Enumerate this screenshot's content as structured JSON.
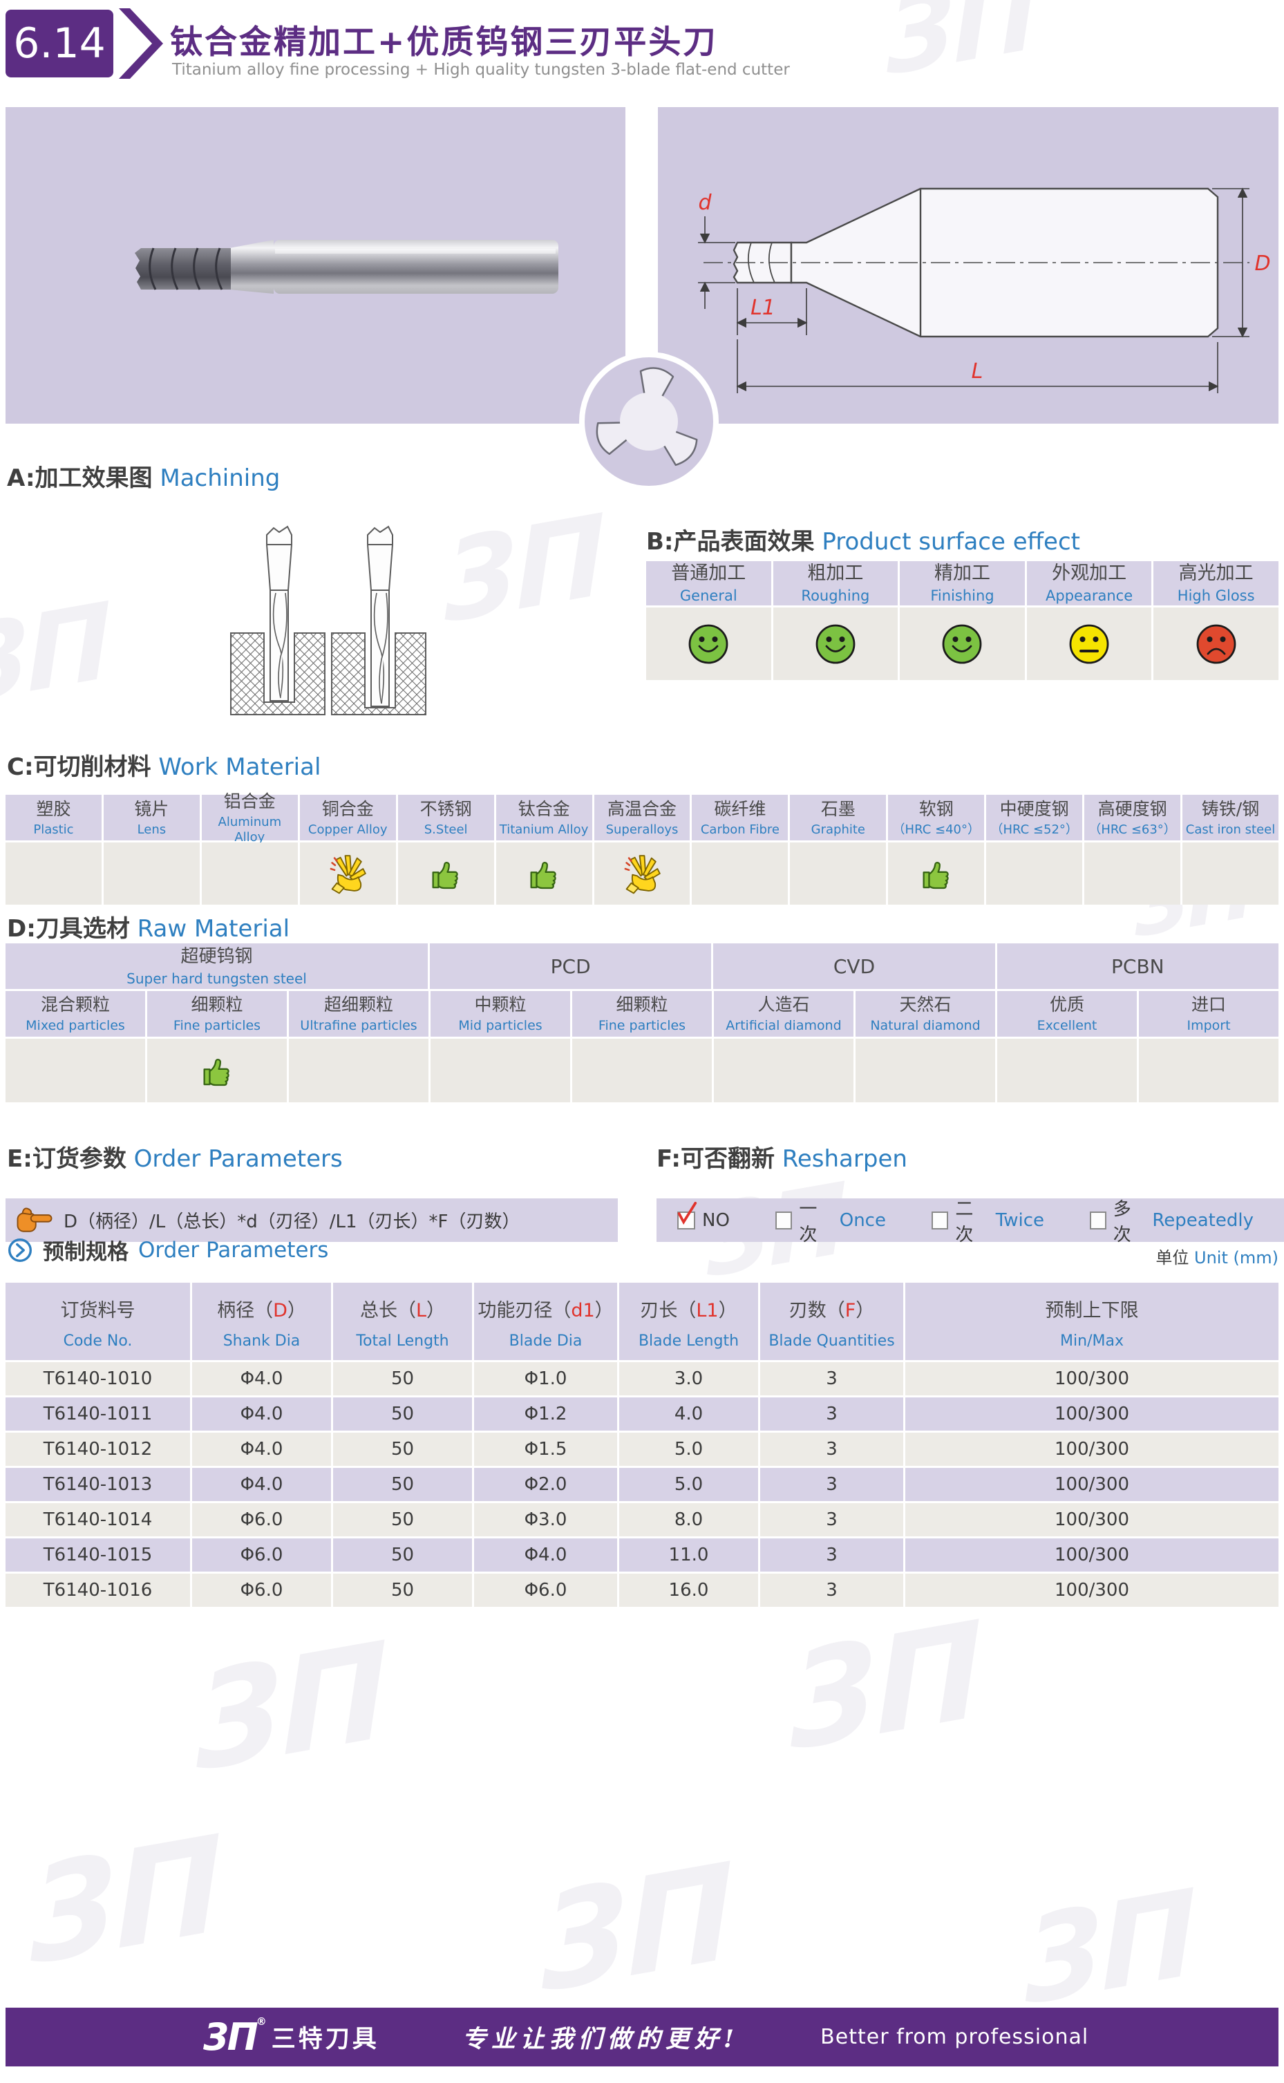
{
  "page": {
    "brand_purple": "#5c2d83",
    "accent_blue": "#2e7fc0",
    "lavender": "#cfc9e0",
    "table_header_color": "#d7d2e6",
    "table_body_color": "#ebe9e4",
    "status_red": "#e0332c",
    "rating_green": "#8cc63f",
    "watermark_text": "3Π"
  },
  "header": {
    "page_no": "6.14",
    "title_cn": "钛合金精加工+优质钨钢三刃平头刀",
    "title_en": "Titanium alloy fine processing + High quality tungsten 3-blade flat-end cutter"
  },
  "diagram": {
    "dim_d": "d",
    "dim_L1": "L1",
    "dim_L": "L",
    "dim_D": "D"
  },
  "section_a": {
    "label_cn": "A:加工效果图",
    "label_en": "Machining"
  },
  "section_b": {
    "label_cn": "B:产品表面效果",
    "label_en": "Product surface effect",
    "columns": [
      {
        "cn": "普通加工",
        "en": "General",
        "face": "happy"
      },
      {
        "cn": "粗加工",
        "en": "Roughing",
        "face": "happy"
      },
      {
        "cn": "精加工",
        "en": "Finishing",
        "face": "happy"
      },
      {
        "cn": "外观加工",
        "en": "Appearance",
        "face": "neutral"
      },
      {
        "cn": "高光加工",
        "en": "High Gloss",
        "face": "sad"
      }
    ]
  },
  "section_c": {
    "label_cn": "C:可切削材料",
    "label_en": "Work Material",
    "columns": [
      {
        "cn": "塑胶",
        "en": "Plastic",
        "rating": ""
      },
      {
        "cn": "镜片",
        "en": "Lens",
        "rating": ""
      },
      {
        "cn": "铝合金",
        "en": "Aluminum Alloy",
        "rating": ""
      },
      {
        "cn": "铜合金",
        "en": "Copper Alloy",
        "rating": "clap"
      },
      {
        "cn": "不锈钢",
        "en": "S.Steel",
        "rating": "thumb"
      },
      {
        "cn": "钛合金",
        "en": "Titanium Alloy",
        "rating": "thumb"
      },
      {
        "cn": "高温合金",
        "en": "Superalloys",
        "rating": "clap"
      },
      {
        "cn": "碳纤维",
        "en": "Carbon Fibre",
        "rating": ""
      },
      {
        "cn": "石墨",
        "en": "Graphite",
        "rating": ""
      },
      {
        "cn": "软钢",
        "en": "（HRC ≤40°）",
        "rating": "thumb"
      },
      {
        "cn": "中硬度钢",
        "en": "（HRC ≤52°）",
        "rating": ""
      },
      {
        "cn": "高硬度钢",
        "en": "（HRC ≤63°）",
        "rating": ""
      },
      {
        "cn": "铸铁/钢",
        "en": "Cast iron steel",
        "rating": ""
      }
    ]
  },
  "section_d": {
    "label_cn": "D:刀具选材",
    "label_en": "Raw Material",
    "groups": [
      {
        "cn": "超硬钨钢",
        "en": "Super hard tungsten steel",
        "span": 3
      },
      {
        "cn": "PCD",
        "en": "",
        "span": 2
      },
      {
        "cn": "CVD",
        "en": "",
        "span": 2
      },
      {
        "cn": "PCBN",
        "en": "",
        "span": 2
      }
    ],
    "columns": [
      {
        "cn": "混合颗粒",
        "en": "Mixed particles",
        "rating": ""
      },
      {
        "cn": "细颗粒",
        "en": "Fine particles",
        "rating": "thumb"
      },
      {
        "cn": "超细颗粒",
        "en": "Ultrafine particles",
        "rating": ""
      },
      {
        "cn": "中颗粒",
        "en": "Mid particles",
        "rating": ""
      },
      {
        "cn": "细颗粒",
        "en": "Fine particles",
        "rating": ""
      },
      {
        "cn": "人造石",
        "en": "Artificial diamond",
        "rating": ""
      },
      {
        "cn": "天然石",
        "en": "Natural diamond",
        "rating": ""
      },
      {
        "cn": "优质",
        "en": "Excellent",
        "rating": ""
      },
      {
        "cn": "进口",
        "en": "Import",
        "rating": ""
      }
    ]
  },
  "section_e": {
    "label_cn": "E:订货参数",
    "label_en": "Order Parameters",
    "formula": "D（柄径）/L（总长）*d（刃径）/L1（刃长）*F（刃数）"
  },
  "section_f": {
    "label_cn": "F:可否翻新",
    "label_en": "Resharpen",
    "options": [
      {
        "cn": "NO",
        "en": "",
        "checked": true
      },
      {
        "cn": "一次",
        "en": "Once",
        "checked": false
      },
      {
        "cn": "二次",
        "en": "Twice",
        "checked": false
      },
      {
        "cn": "多次",
        "en": "Repeatedly",
        "checked": false
      }
    ]
  },
  "spec": {
    "heading_cn": "预制规格",
    "heading_en": "Order Parameters",
    "unit_cn": "单位",
    "unit_en": "Unit (mm)",
    "columns": [
      {
        "cn": "订货料号",
        "var": "",
        "en": "Code No."
      },
      {
        "cn": "柄径",
        "var": "D",
        "en": "Shank Dia"
      },
      {
        "cn": "总长",
        "var": "L",
        "en": "Total Length"
      },
      {
        "cn": "功能刃径",
        "var": "d1",
        "en": "Blade Dia"
      },
      {
        "cn": "刃长",
        "var": "L1",
        "en": "Blade Length"
      },
      {
        "cn": "刃数",
        "var": "F",
        "en": "Blade Quantities"
      },
      {
        "cn": "预制上下限",
        "var": "",
        "en": "Min/Max"
      }
    ],
    "rows": [
      [
        "T6140-1010",
        "Φ4.0",
        "50",
        "Φ1.0",
        "3.0",
        "3",
        "100/300"
      ],
      [
        "T6140-1011",
        "Φ4.0",
        "50",
        "Φ1.2",
        "4.0",
        "3",
        "100/300"
      ],
      [
        "T6140-1012",
        "Φ4.0",
        "50",
        "Φ1.5",
        "5.0",
        "3",
        "100/300"
      ],
      [
        "T6140-1013",
        "Φ4.0",
        "50",
        "Φ2.0",
        "5.0",
        "3",
        "100/300"
      ],
      [
        "T6140-1014",
        "Φ6.0",
        "50",
        "Φ3.0",
        "8.0",
        "3",
        "100/300"
      ],
      [
        "T6140-1015",
        "Φ6.0",
        "50",
        "Φ4.0",
        "11.0",
        "3",
        "100/300"
      ],
      [
        "T6140-1016",
        "Φ6.0",
        "50",
        "Φ6.0",
        "16.0",
        "3",
        "100/300"
      ]
    ]
  },
  "footer": {
    "logo": "3Π",
    "brand_cn": "三特刀具",
    "slogan_cn": "专业让我们做的更好!",
    "slogan_en": "Better from professional"
  }
}
